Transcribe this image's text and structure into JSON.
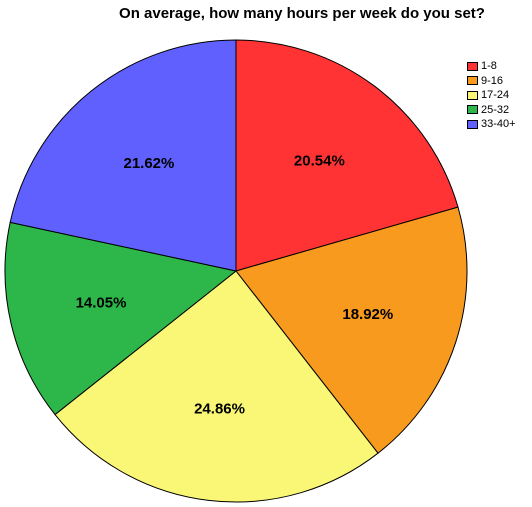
{
  "chart_data": {
    "type": "pie",
    "title": "On average, how many hours per week do you set?",
    "categories": [
      "1-8",
      "9-16",
      "17-24",
      "25-32",
      "33-40+"
    ],
    "values": [
      20.54,
      18.92,
      24.86,
      14.05,
      21.62
    ],
    "labels": [
      "20.54%",
      "18.92%",
      "24.86%",
      "14.05%",
      "21.62%"
    ],
    "colors": [
      "#ff3333",
      "#f79a1e",
      "#f9f775",
      "#2db64a",
      "#6060ff"
    ],
    "start_angle": "12 o'clock",
    "direction": "clockwise",
    "legend": "top-right"
  }
}
